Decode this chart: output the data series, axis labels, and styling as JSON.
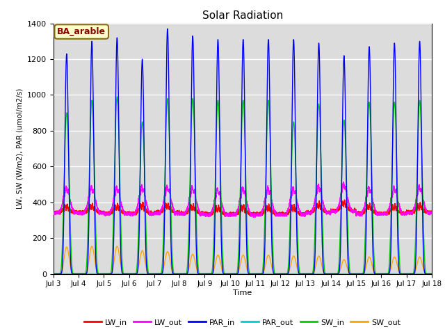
{
  "title": "Solar Radiation",
  "ylabel": "LW, SW (W/m2), PAR (umol/m2/s)",
  "xlabel": "Time",
  "annotation": "BA_arable",
  "annotation_color": "#8B0000",
  "annotation_bg": "#FFFFCC",
  "ylim": [
    0,
    1400
  ],
  "xlim_start": 3,
  "xlim_end": 18,
  "xtick_labels": [
    "Jul 3",
    "Jul 4",
    "Jul 5",
    "Jul 6",
    "Jul 7",
    "Jul 8",
    "Jul 9",
    "Jul 10",
    "Jul 11",
    "Jul 12",
    "Jul 13",
    "Jul 14",
    "Jul 15",
    "Jul 16",
    "Jul 17",
    "Jul 18"
  ],
  "series": {
    "LW_in": {
      "color": "#FF0000",
      "lw": 1.0
    },
    "LW_out": {
      "color": "#FF00FF",
      "lw": 1.0
    },
    "PAR_in": {
      "color": "#0000FF",
      "lw": 1.0
    },
    "PAR_out": {
      "color": "#00CCCC",
      "lw": 1.0
    },
    "SW_in": {
      "color": "#00CC00",
      "lw": 1.0
    },
    "SW_out": {
      "color": "#FFA500",
      "lw": 1.0
    }
  },
  "bg_color": "#DCDCDC",
  "grid_color": "#FFFFFF",
  "par_peaks": [
    1230,
    1300,
    1320,
    1200,
    1370,
    1330,
    1310,
    1310,
    1310,
    1310,
    1290,
    1220,
    1270,
    1290,
    1300
  ],
  "sw_peaks": [
    900,
    970,
    990,
    850,
    980,
    980,
    970,
    970,
    970,
    850,
    950,
    860,
    960,
    960,
    970
  ],
  "sw_out_pk": [
    150,
    155,
    155,
    130,
    125,
    110,
    105,
    105,
    105,
    100,
    100,
    80,
    95,
    95,
    95
  ],
  "lw_base": [
    345,
    345,
    340,
    340,
    345,
    340,
    335,
    335,
    335,
    335,
    345,
    355,
    340,
    340,
    345
  ],
  "lw_amp": [
    30,
    30,
    35,
    40,
    35,
    35,
    30,
    35,
    35,
    35,
    40,
    40,
    35,
    35,
    35
  ]
}
